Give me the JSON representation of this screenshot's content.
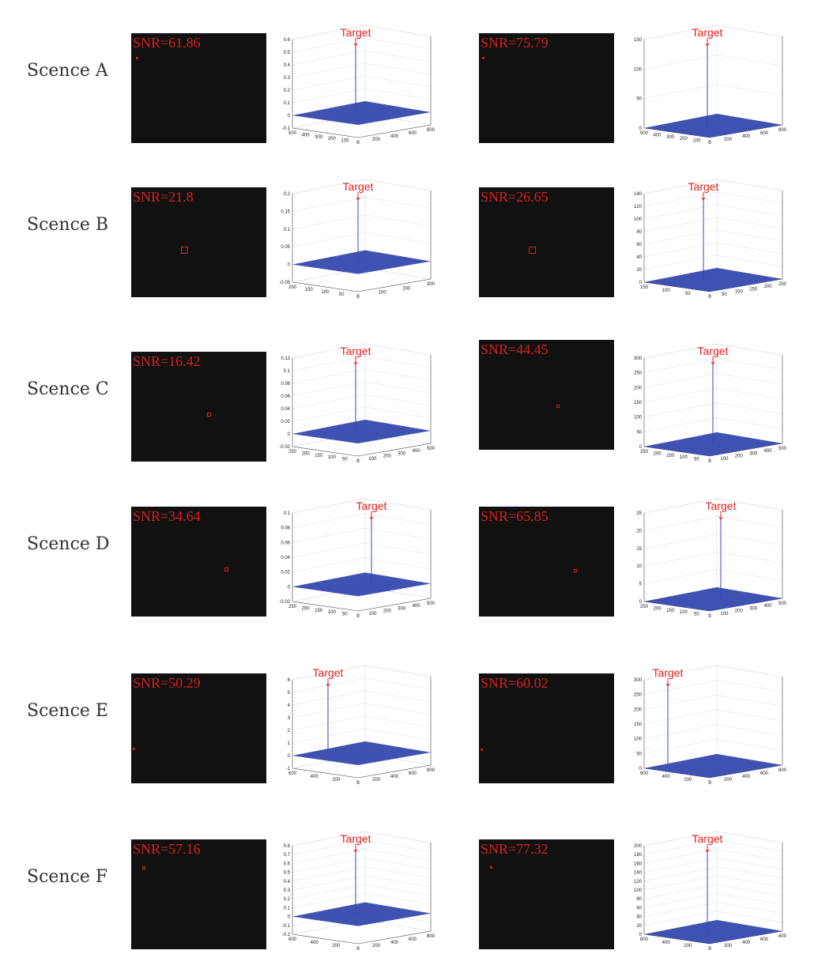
{
  "rows": [
    {
      "label": "Scence A",
      "panels": [
        {
          "snr": "SNR=61.86",
          "target": "Target",
          "zticks": [
            "0.6",
            "0.5",
            "0.4",
            "0.3",
            "0.2",
            "0.1",
            "0",
            "-0.1"
          ],
          "xticks": [
            "500",
            "400",
            "300",
            "200",
            "100",
            "0"
          ],
          "yticks": [
            "0",
            "200",
            "400",
            "600",
            "800"
          ]
        },
        {
          "snr": "SNR=75.79",
          "target": "Target",
          "zticks": [
            "150",
            "100",
            "50",
            "0"
          ],
          "xticks": [
            "500",
            "400",
            "300",
            "200",
            "100",
            "0"
          ],
          "yticks": [
            "0",
            "200",
            "400",
            "600",
            "800"
          ]
        }
      ]
    },
    {
      "label": "Scence B",
      "panels": [
        {
          "snr": "SNR=21.8",
          "target": "Target",
          "zticks": [
            "0.2",
            "0.15",
            "0.1",
            "0.05",
            "0",
            "-0.05"
          ],
          "xticks": [
            "200",
            "150",
            "100",
            "50",
            "0"
          ],
          "yticks": [
            "0",
            "100",
            "200",
            "300"
          ]
        },
        {
          "snr": "SNR=26.65",
          "target": "Target",
          "zticks": [
            "140",
            "120",
            "100",
            "80",
            "60",
            "40",
            "20",
            "0"
          ],
          "xticks": [
            "150",
            "100",
            "50",
            "0"
          ],
          "yticks": [
            "0",
            "50",
            "100",
            "150",
            "200",
            "250"
          ]
        }
      ]
    },
    {
      "label": "Scence C",
      "panels": [
        {
          "snr": "SNR=16.42",
          "target": "Target",
          "zticks": [
            "0.12",
            "0.1",
            "0.08",
            "0.06",
            "0.04",
            "0.02",
            "0",
            "-0.02"
          ],
          "xticks": [
            "250",
            "200",
            "150",
            "100",
            "50",
            "0"
          ],
          "yticks": [
            "0",
            "100",
            "200",
            "300",
            "400",
            "500"
          ]
        },
        {
          "snr": "SNR=44.45",
          "target": "Target",
          "zticks": [
            "300",
            "250",
            "200",
            "150",
            "100",
            "50",
            "0"
          ],
          "xticks": [
            "250",
            "200",
            "150",
            "100",
            "50",
            "0"
          ],
          "yticks": [
            "0",
            "100",
            "200",
            "300",
            "400",
            "500"
          ]
        }
      ]
    },
    {
      "label": "Scence D",
      "panels": [
        {
          "snr": "SNR=34.64",
          "target": "Target",
          "zticks": [
            "0.1",
            "0.08",
            "0.06",
            "0.04",
            "0.02",
            "0",
            "-0.02"
          ],
          "xticks": [
            "250",
            "200",
            "150",
            "100",
            "50",
            "0"
          ],
          "yticks": [
            "0",
            "100",
            "200",
            "300",
            "400",
            "500"
          ]
        },
        {
          "snr": "SNR=65.85",
          "target": "Target",
          "zticks": [
            "25",
            "20",
            "15",
            "10",
            "5",
            "0"
          ],
          "xticks": [
            "250",
            "200",
            "150",
            "100",
            "50",
            "0"
          ],
          "yticks": [
            "0",
            "100",
            "200",
            "300",
            "400",
            "500"
          ]
        }
      ]
    },
    {
      "label": "Scence E",
      "panels": [
        {
          "snr": "SNR=50.29",
          "target": "Target",
          "zticks": [
            "6",
            "5",
            "4",
            "3",
            "2",
            "1",
            "0",
            "-1"
          ],
          "xticks": [
            "600",
            "400",
            "200",
            "0"
          ],
          "yticks": [
            "0",
            "200",
            "400",
            "600",
            "800"
          ]
        },
        {
          "snr": "SNR=60.02",
          "target": "Target",
          "zticks": [
            "300",
            "250",
            "200",
            "150",
            "100",
            "50",
            "0"
          ],
          "xticks": [
            "600",
            "400",
            "200",
            "0"
          ],
          "yticks": [
            "0",
            "200",
            "400",
            "600",
            "800"
          ]
        }
      ]
    },
    {
      "label": "Scence F",
      "panels": [
        {
          "snr": "SNR=57.16",
          "target": "Target",
          "zticks": [
            "0.8",
            "0.7",
            "0.6",
            "0.5",
            "0.4",
            "0.3",
            "0.2",
            "0.1",
            "0",
            "-0.1",
            "-0.2"
          ],
          "xticks": [
            "600",
            "400",
            "200",
            "0"
          ],
          "yticks": [
            "0",
            "200",
            "400",
            "600",
            "800"
          ]
        },
        {
          "snr": "SNR=77.32",
          "target": "Target",
          "zticks": [
            "200",
            "180",
            "160",
            "140",
            "120",
            "100",
            "80",
            "60",
            "40",
            "20",
            "0"
          ],
          "xticks": [
            "600",
            "400",
            "200",
            "0"
          ],
          "yticks": [
            "0",
            "200",
            "400",
            "600",
            "800"
          ]
        }
      ]
    }
  ]
}
